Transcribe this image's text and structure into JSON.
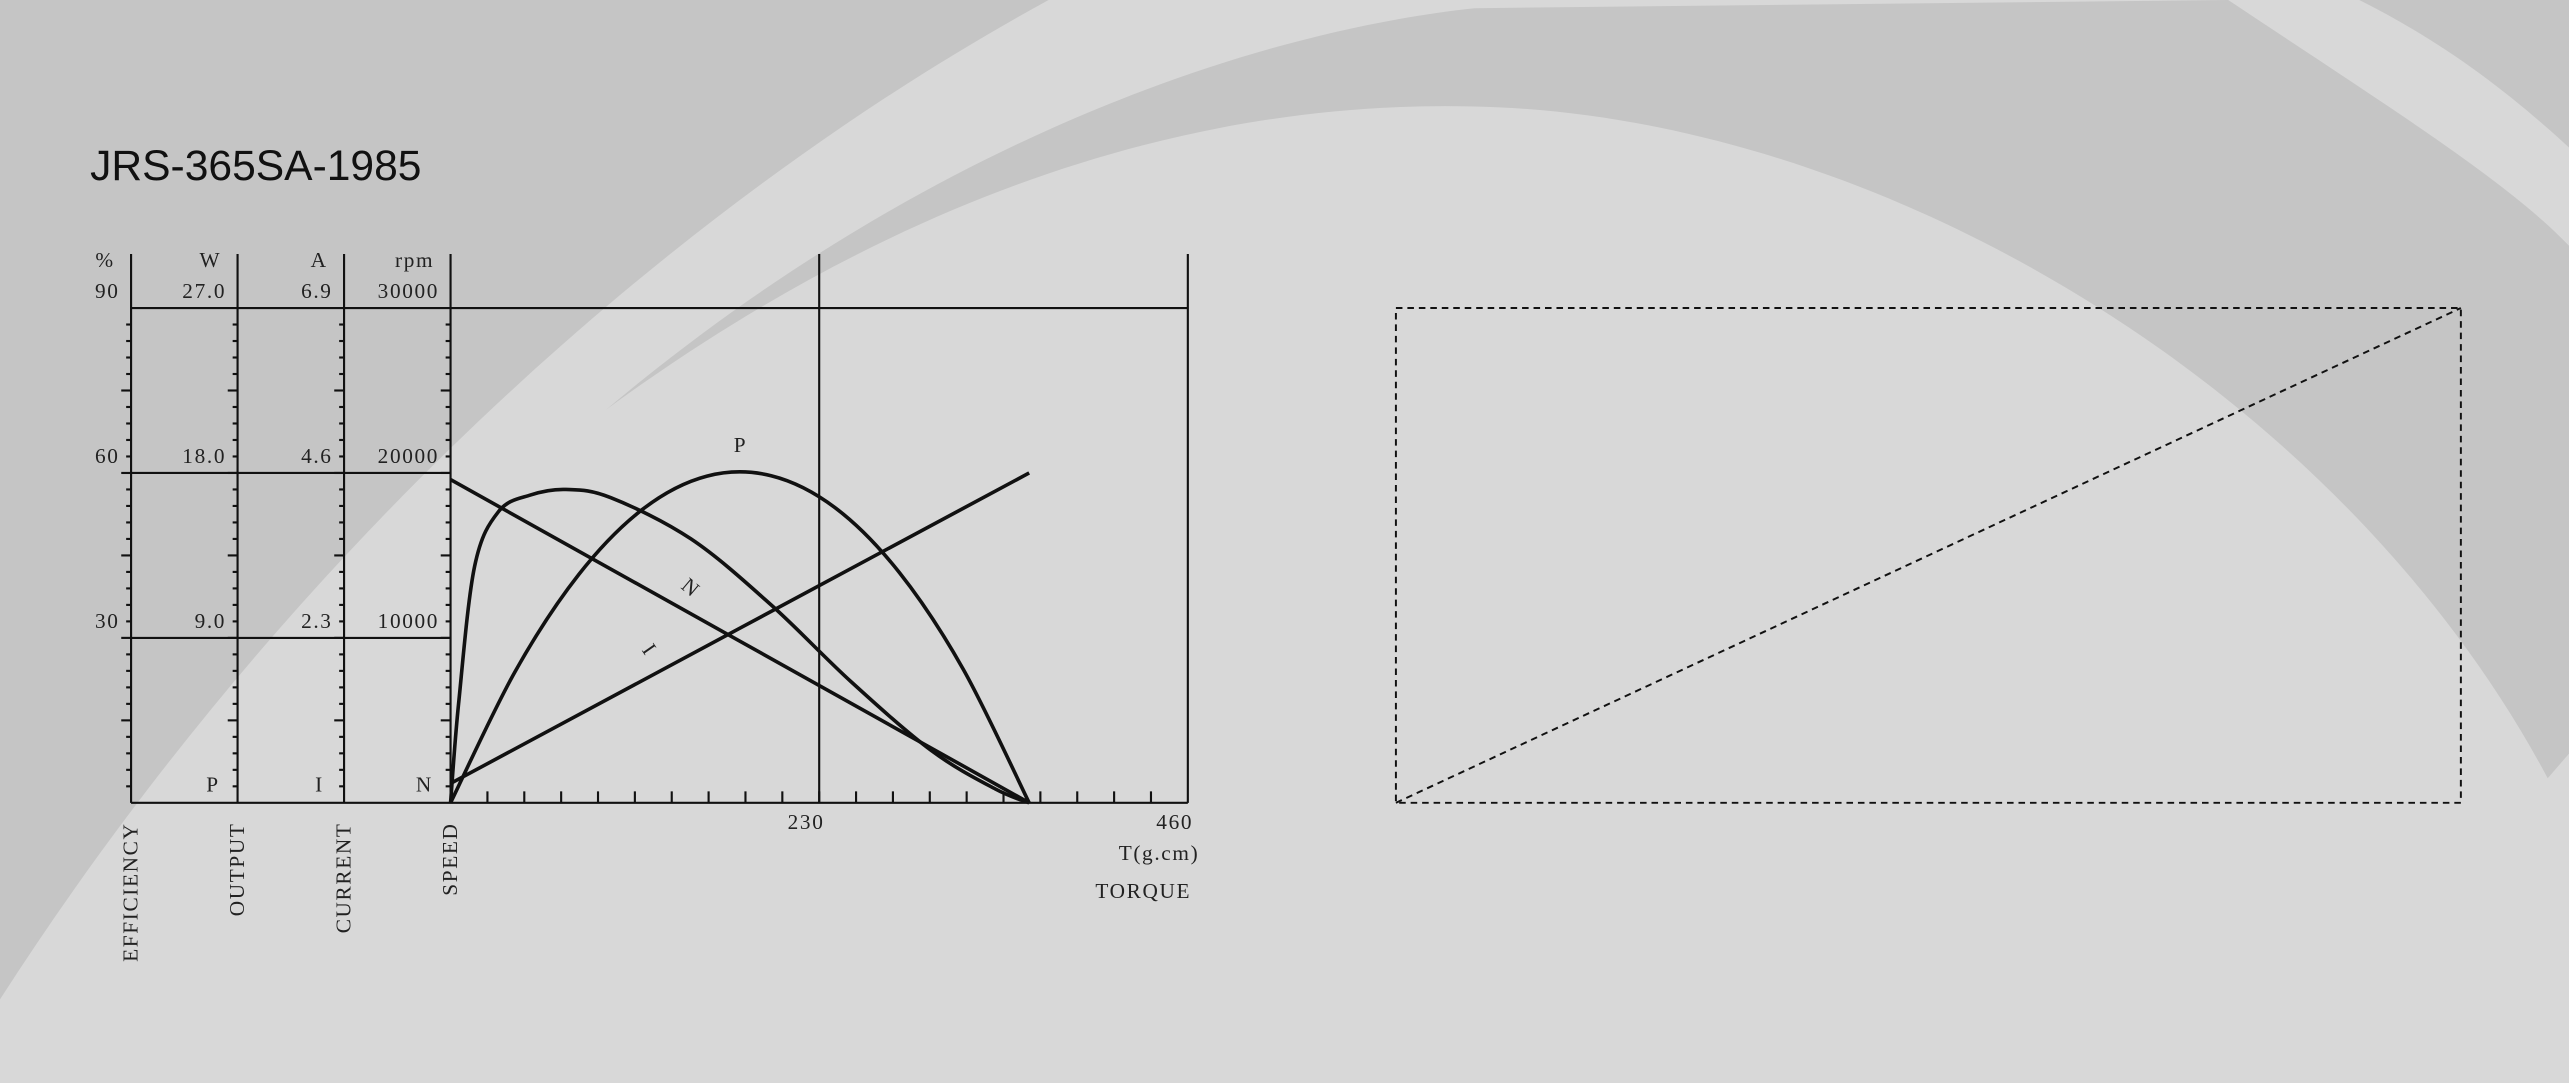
{
  "title": "JRS-365SA-1985",
  "chart_data": {
    "type": "motor-curve",
    "xlabel": "T(g.cm)",
    "xname": "TORQUE",
    "xlim": [
      0,
      460
    ],
    "xticks": [
      230,
      460
    ],
    "axes": [
      {
        "unit": "%",
        "name": "EFFICIENCY",
        "ylim": [
          0,
          90
        ],
        "yticks": [
          30,
          60,
          90
        ]
      },
      {
        "unit": "W",
        "name": "OUTPUT",
        "ylim": [
          0,
          27
        ],
        "yticks": [
          {
            "value": 9,
            "label": "9.0"
          },
          {
            "value": 18,
            "label": "18.0"
          },
          {
            "value": 27,
            "label": "27.0"
          }
        ]
      },
      {
        "unit": "A",
        "name": "CURRENT",
        "ylim": [
          0,
          6.9
        ],
        "yticks": [
          2.3,
          4.6,
          6.9
        ]
      },
      {
        "unit": "rpm",
        "name": "SPEED",
        "ylim": [
          0,
          30000
        ],
        "yticks": [
          10000,
          20000,
          30000
        ]
      }
    ],
    "series": [
      {
        "axis": 0,
        "x": [
          0,
          5,
          15,
          30,
          50,
          72,
          100,
          150,
          200,
          250,
          300,
          340,
          361
        ],
        "values": [
          0,
          18,
          43,
          53,
          56,
          57,
          55.5,
          48,
          36,
          22,
          9.5,
          2.5,
          0
        ]
      },
      {
        "label": "P",
        "axis": 1,
        "x": [
          0,
          40,
          80,
          120,
          160,
          200,
          240,
          280,
          320,
          361
        ],
        "values": [
          0,
          7.12,
          12.46,
          16.03,
          17.83,
          17.85,
          16.1,
          12.57,
          7.27,
          0
        ]
      },
      {
        "label": "I",
        "axis": 2,
        "x": [
          0,
          361
        ],
        "values": [
          0.27,
          4.6
        ]
      },
      {
        "label": "N",
        "axis": 3,
        "x": [
          0,
          361
        ],
        "values": [
          19600,
          0
        ]
      }
    ]
  }
}
